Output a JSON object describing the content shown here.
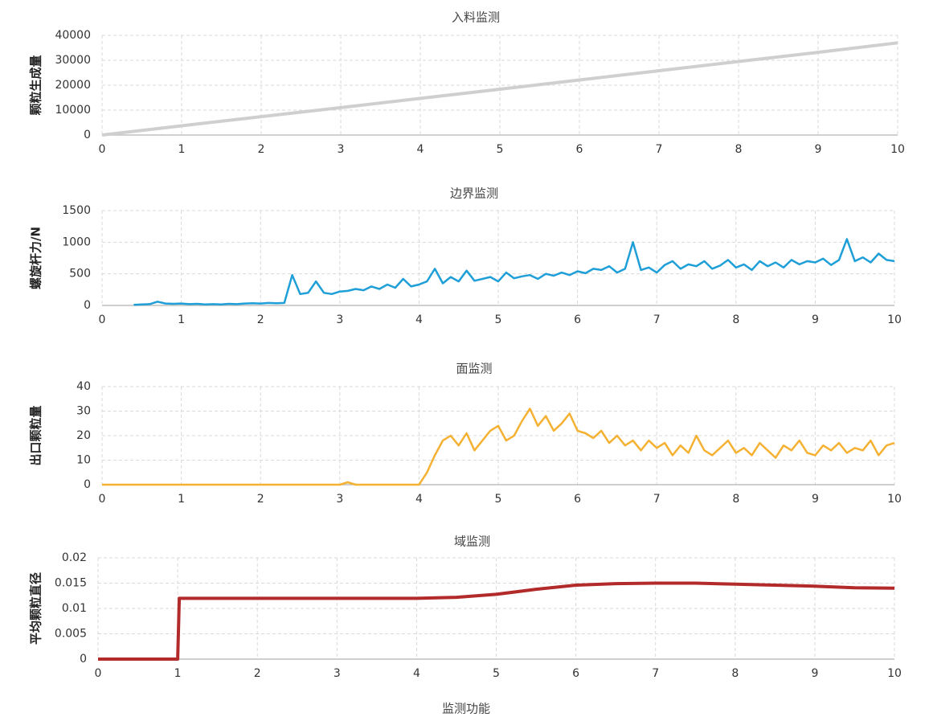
{
  "chart_data": [
    {
      "type": "line",
      "title": "入料监测",
      "ylabel": "颗粒生成量",
      "color": "#cfcfcf",
      "x": [
        0,
        1,
        2,
        3,
        4,
        5,
        6,
        7,
        8,
        9,
        10
      ],
      "values": [
        0,
        3700,
        7400,
        11000,
        14700,
        18400,
        22100,
        25800,
        29500,
        33200,
        37000
      ],
      "xlim": [
        0,
        10
      ],
      "xticks": [
        0,
        1,
        2,
        3,
        4,
        5,
        6,
        7,
        8,
        9,
        10
      ],
      "ylim": [
        0,
        40000
      ],
      "yticks": [
        0,
        10000,
        20000,
        30000,
        40000
      ],
      "grid": true
    },
    {
      "type": "line",
      "title": "边界监测",
      "ylabel": "螺旋杆力/N",
      "color": "#1f9fd8",
      "x": [
        0,
        0.1,
        0.2,
        0.3,
        0.4,
        0.5,
        0.6,
        0.7,
        0.8,
        0.9,
        1,
        1.1,
        1.2,
        1.3,
        1.4,
        1.5,
        1.6,
        1.7,
        1.8,
        1.9,
        2,
        2.1,
        2.2,
        2.3,
        2.4,
        2.5,
        2.6,
        2.7,
        2.8,
        2.9,
        3,
        3.1,
        3.2,
        3.3,
        3.4,
        3.5,
        3.6,
        3.7,
        3.8,
        3.9,
        4,
        4.1,
        4.2,
        4.3,
        4.4,
        4.5,
        4.6,
        4.7,
        4.8,
        4.9,
        5,
        5.1,
        5.2,
        5.3,
        5.4,
        5.5,
        5.6,
        5.7,
        5.8,
        5.9,
        6,
        6.1,
        6.2,
        6.3,
        6.4,
        6.5,
        6.6,
        6.7,
        6.8,
        6.9,
        7,
        7.1,
        7.2,
        7.3,
        7.4,
        7.5,
        7.6,
        7.7,
        7.8,
        7.9,
        8,
        8.1,
        8.2,
        8.3,
        8.4,
        8.5,
        8.6,
        8.7,
        8.8,
        8.9,
        9,
        9.1,
        9.2,
        9.3,
        9.4,
        9.5,
        9.6,
        9.7,
        9.8,
        9.9,
        10
      ],
      "values": [
        null,
        null,
        null,
        null,
        10,
        15,
        20,
        60,
        30,
        25,
        30,
        20,
        25,
        15,
        20,
        15,
        25,
        20,
        30,
        35,
        30,
        40,
        35,
        40,
        480,
        180,
        200,
        380,
        200,
        180,
        220,
        230,
        260,
        240,
        300,
        260,
        330,
        280,
        420,
        300,
        330,
        380,
        580,
        350,
        450,
        380,
        550,
        390,
        420,
        450,
        380,
        520,
        430,
        460,
        480,
        420,
        500,
        470,
        520,
        480,
        540,
        510,
        580,
        560,
        620,
        520,
        580,
        1000,
        560,
        600,
        520,
        640,
        700,
        580,
        650,
        620,
        700,
        580,
        630,
        720,
        600,
        650,
        560,
        700,
        620,
        680,
        600,
        720,
        650,
        700,
        680,
        740,
        640,
        720,
        1050,
        700,
        760,
        680,
        820,
        720,
        700
      ],
      "xlim": [
        0,
        10
      ],
      "xticks": [
        0,
        1,
        2,
        3,
        4,
        5,
        6,
        7,
        8,
        9,
        10
      ],
      "ylim": [
        0,
        1500
      ],
      "yticks": [
        0,
        500,
        1000,
        1500
      ],
      "grid": true
    },
    {
      "type": "line",
      "title": "面监测",
      "ylabel": "出口颗粒量",
      "color": "#f4b132",
      "x": [
        0,
        0.1,
        0.2,
        0.3,
        0.4,
        0.5,
        0.6,
        0.7,
        0.8,
        0.9,
        1,
        1.1,
        1.2,
        1.3,
        1.4,
        1.5,
        1.6,
        1.7,
        1.8,
        1.9,
        2,
        2.1,
        2.2,
        2.3,
        2.4,
        2.5,
        2.6,
        2.7,
        2.8,
        2.9,
        3,
        3.1,
        3.2,
        3.3,
        3.4,
        3.5,
        3.6,
        3.7,
        3.8,
        3.9,
        4,
        4.1,
        4.2,
        4.3,
        4.4,
        4.5,
        4.6,
        4.7,
        4.8,
        4.9,
        5,
        5.1,
        5.2,
        5.3,
        5.4,
        5.5,
        5.6,
        5.7,
        5.8,
        5.9,
        6,
        6.1,
        6.2,
        6.3,
        6.4,
        6.5,
        6.6,
        6.7,
        6.8,
        6.9,
        7,
        7.1,
        7.2,
        7.3,
        7.4,
        7.5,
        7.6,
        7.7,
        7.8,
        7.9,
        8,
        8.1,
        8.2,
        8.3,
        8.4,
        8.5,
        8.6,
        8.7,
        8.8,
        8.9,
        9,
        9.1,
        9.2,
        9.3,
        9.4,
        9.5,
        9.6,
        9.7,
        9.8,
        9.9,
        10
      ],
      "values": [
        0,
        0,
        0,
        0,
        0,
        0,
        0,
        0,
        0,
        0,
        0,
        0,
        0,
        0,
        0,
        0,
        0,
        0,
        0,
        0,
        0,
        0,
        0,
        0,
        0,
        0,
        0,
        0,
        0,
        0,
        0,
        1,
        0,
        0,
        0,
        0,
        0,
        0,
        0,
        0,
        0,
        5,
        12,
        18,
        20,
        16,
        21,
        14,
        18,
        22,
        24,
        18,
        20,
        26,
        31,
        24,
        28,
        22,
        25,
        29,
        22,
        21,
        19,
        22,
        17,
        20,
        16,
        18,
        14,
        18,
        15,
        17,
        12,
        16,
        13,
        20,
        14,
        12,
        15,
        18,
        13,
        15,
        12,
        17,
        14,
        11,
        16,
        14,
        18,
        13,
        12,
        16,
        14,
        17,
        13,
        15,
        14,
        18,
        12,
        16,
        17
      ],
      "xlim": [
        0,
        10
      ],
      "xticks": [
        0,
        1,
        2,
        3,
        4,
        5,
        6,
        7,
        8,
        9,
        10
      ],
      "ylim": [
        0,
        40
      ],
      "yticks": [
        0,
        10,
        20,
        30,
        40
      ],
      "grid": true
    },
    {
      "type": "line",
      "title": "域监测",
      "ylabel": "平均颗粒直径",
      "xlabel": "监测功能",
      "color": "#b22a2a",
      "x": [
        0,
        1,
        1.02,
        2,
        3,
        4,
        4.5,
        5,
        5.5,
        6,
        6.5,
        7,
        7.5,
        8,
        8.5,
        9,
        9.5,
        10
      ],
      "values": [
        0,
        0,
        0.012,
        0.012,
        0.012,
        0.012,
        0.0122,
        0.0128,
        0.0138,
        0.0146,
        0.0149,
        0.015,
        0.015,
        0.0148,
        0.0146,
        0.0144,
        0.0141,
        0.014
      ],
      "xlim": [
        0,
        10
      ],
      "xticks": [
        0,
        1,
        2,
        3,
        4,
        5,
        6,
        7,
        8,
        9,
        10
      ],
      "ylim": [
        0,
        0.02
      ],
      "yticks": [
        0,
        0.005,
        0.01,
        0.015,
        0.02
      ],
      "grid": true
    }
  ]
}
